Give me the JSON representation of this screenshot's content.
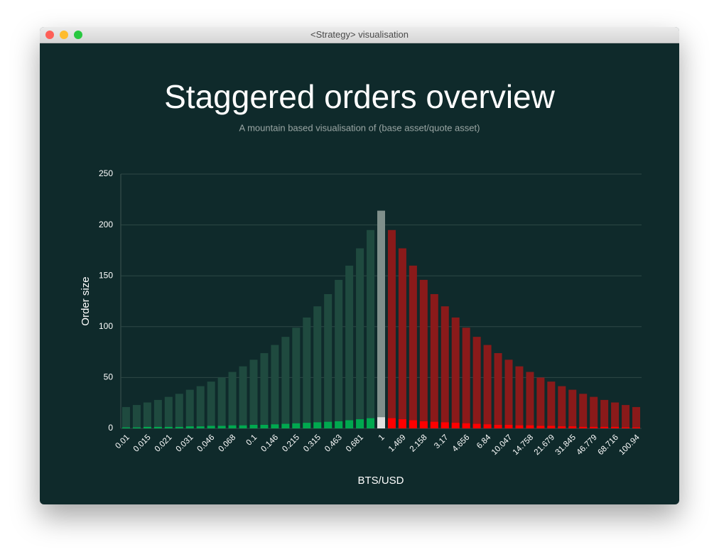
{
  "window_title": "<Strategy> visualisation",
  "chart_data": {
    "type": "bar",
    "stacked": false,
    "title": "Staggered orders overview",
    "subtitle": "A mountain based visualisation of (base asset/quote asset)",
    "x_label": "BTS/USD",
    "y_label": "Order size",
    "categories": [
      "0.01",
      null,
      "0.015",
      null,
      "0.021",
      null,
      "0.031",
      null,
      "0.046",
      null,
      "0.068",
      null,
      "0.1",
      null,
      "0.146",
      null,
      "0.215",
      null,
      "0.315",
      null,
      "0.463",
      null,
      "0.681",
      null,
      "1",
      null,
      "1.469",
      null,
      "2.158",
      null,
      "3.17",
      null,
      "4.656",
      null,
      "6.84",
      null,
      "10.047",
      null,
      "14.758",
      null,
      "21.679",
      null,
      "31.845",
      null,
      "46.779",
      null,
      "68.716",
      null,
      "100.94"
    ],
    "series": [
      {
        "color": "#1f4a3f",
        "values": [
          21,
          23,
          25.5,
          28,
          31,
          34,
          38,
          41.5,
          46,
          50,
          55.5,
          61,
          67.5,
          74,
          82,
          90,
          99,
          109,
          120,
          132,
          146,
          160,
          177,
          195,
          null,
          null,
          null,
          null,
          null,
          null,
          null,
          null,
          null,
          null,
          null,
          null,
          null,
          null,
          null,
          null,
          null,
          null,
          null,
          null,
          null,
          null,
          null,
          null,
          null
        ]
      },
      {
        "color": "#7f8f8b",
        "values": [
          null,
          null,
          null,
          null,
          null,
          null,
          null,
          null,
          null,
          null,
          null,
          null,
          null,
          null,
          null,
          null,
          null,
          null,
          null,
          null,
          null,
          null,
          null,
          null,
          214,
          null,
          null,
          null,
          null,
          null,
          null,
          null,
          null,
          null,
          null,
          null,
          null,
          null,
          null,
          null,
          null,
          null,
          null,
          null,
          null,
          null,
          null,
          null,
          null
        ]
      },
      {
        "color": "#8a1a1a",
        "values": [
          null,
          null,
          null,
          null,
          null,
          null,
          null,
          null,
          null,
          null,
          null,
          null,
          null,
          null,
          null,
          null,
          null,
          null,
          null,
          null,
          null,
          null,
          null,
          null,
          null,
          195,
          177,
          160,
          146,
          132,
          120,
          109,
          99,
          90,
          82,
          74,
          67.5,
          61,
          55.5,
          50,
          46,
          41.5,
          38,
          34,
          31,
          28,
          25.5,
          23,
          21
        ]
      },
      {
        "color": "#00a84f",
        "values": [
          1,
          1,
          1.5,
          1.5,
          1.5,
          1.5,
          2,
          2,
          2.5,
          2.5,
          3,
          3,
          3.5,
          3.5,
          4,
          4.5,
          5,
          5.5,
          6,
          6.5,
          7,
          8,
          9,
          10,
          null,
          null,
          null,
          null,
          null,
          null,
          null,
          null,
          null,
          null,
          null,
          null,
          null,
          null,
          null,
          null,
          null,
          null,
          null,
          null,
          null,
          null,
          null,
          null,
          null
        ]
      },
      {
        "color": "#e0e0e0",
        "values": [
          null,
          null,
          null,
          null,
          null,
          null,
          null,
          null,
          null,
          null,
          null,
          null,
          null,
          null,
          null,
          null,
          null,
          null,
          null,
          null,
          null,
          null,
          null,
          null,
          11,
          null,
          null,
          null,
          null,
          null,
          null,
          null,
          null,
          null,
          null,
          null,
          null,
          null,
          null,
          null,
          null,
          null,
          null,
          null,
          null,
          null,
          null,
          null,
          null
        ]
      },
      {
        "color": "#ff0000",
        "values": [
          null,
          null,
          null,
          null,
          null,
          null,
          null,
          null,
          null,
          null,
          null,
          null,
          null,
          null,
          null,
          null,
          null,
          null,
          null,
          null,
          null,
          null,
          null,
          null,
          null,
          10,
          9,
          8,
          7,
          6.5,
          6,
          5.5,
          5,
          4.5,
          4,
          3.5,
          3.5,
          3,
          3,
          2.5,
          2.5,
          2,
          2,
          1.5,
          1.5,
          1.5,
          1.5,
          1,
          1
        ]
      }
    ],
    "ylim": [
      0,
      250
    ],
    "yticks": [
      0,
      50,
      100,
      150,
      200,
      250
    ],
    "grid": true
  }
}
